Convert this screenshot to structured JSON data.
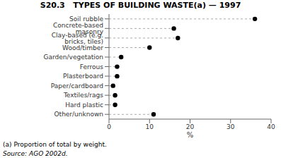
{
  "chart_data": {
    "type": "lollipop",
    "orientation": "horizontal",
    "title": "S20.3   TYPES OF BUILDING WASTE(a) — 1997",
    "categories": [
      "Soil rubble",
      "Concrete-based masonry",
      "Clay-based (e.g. bricks, tiles)",
      "Wood/timber",
      "Garden/vegetation",
      "Ferrous",
      "Plasterboard",
      "Paper/cardboard",
      "Textiles/rags",
      "Hard plastic",
      "Other/unknown"
    ],
    "values": [
      36,
      16,
      17,
      10,
      3,
      2,
      2,
      1,
      1.5,
      1.5,
      11
    ],
    "color": "#000000",
    "marker": "circle",
    "line_style": "dashed",
    "xlabel": "%",
    "xlim": [
      0,
      40
    ],
    "xticks": [
      0,
      10,
      20,
      30,
      40
    ],
    "grid": false,
    "annotations": [
      "(a) Proportion of total by weight.",
      "Source: AGO 2002d."
    ]
  }
}
